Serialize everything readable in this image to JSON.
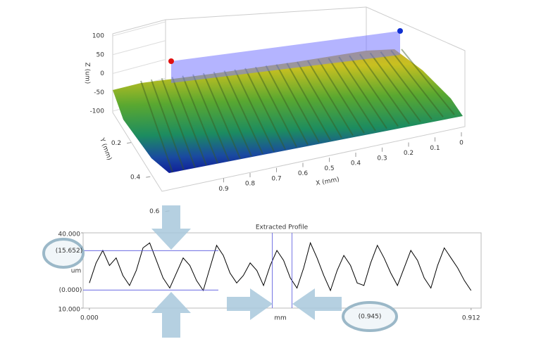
{
  "chart_data": [
    {
      "type": "surface3d",
      "zlabel": "Z (um)",
      "ylabel": "Y (mm)",
      "xlabel": "X (mm)",
      "zlim": [
        -100,
        100
      ],
      "zticks": [
        100,
        50,
        0,
        -50,
        -100
      ],
      "ylim": [
        0,
        0.7
      ],
      "yticks": [
        0.2,
        0.4,
        0.6
      ],
      "xlim": [
        0,
        1
      ],
      "xticks": [
        0.9,
        0.8,
        0.7,
        0.6,
        0.5,
        0.4,
        0.3,
        0.2,
        0.1,
        0
      ]
    },
    {
      "type": "line",
      "title": "Extracted Profile",
      "ylabel": "um",
      "xlabel": "mm",
      "color": "#000000",
      "ylim": [
        10,
        40
      ],
      "yticks": [
        {
          "value": 40,
          "label": "40.000"
        },
        {
          "value": 10,
          "label": "10.000"
        }
      ],
      "xlim": [
        -0.015,
        0.936
      ],
      "xticks": [
        {
          "value": 0,
          "label": "0.000"
        },
        {
          "value": 0.912,
          "label": "0.912"
        }
      ],
      "hcursors": [
        {
          "value": 32.9,
          "label": "(15.652)"
        },
        {
          "value": 17.2,
          "label": "(0.000)"
        }
      ],
      "vcursors": [
        0.437,
        0.484
      ],
      "vcursor_label": "(0.945)",
      "x": [
        0,
        0.016,
        0.032,
        0.048,
        0.064,
        0.08,
        0.096,
        0.112,
        0.128,
        0.144,
        0.16,
        0.176,
        0.192,
        0.208,
        0.224,
        0.24,
        0.256,
        0.272,
        0.288,
        0.304,
        0.32,
        0.336,
        0.352,
        0.368,
        0.384,
        0.4,
        0.416,
        0.432,
        0.448,
        0.464,
        0.48,
        0.496,
        0.512,
        0.528,
        0.544,
        0.56,
        0.576,
        0.592,
        0.608,
        0.624,
        0.64,
        0.656,
        0.672,
        0.688,
        0.704,
        0.72,
        0.736,
        0.752,
        0.768,
        0.784,
        0.8,
        0.816,
        0.832,
        0.848,
        0.864,
        0.88,
        0.896,
        0.912
      ],
      "values": [
        20,
        28,
        33,
        27,
        30,
        23,
        19,
        25,
        34,
        36,
        29,
        22,
        18,
        24,
        30,
        27,
        21,
        17,
        26,
        35,
        31,
        24,
        20,
        23,
        28,
        25,
        19,
        27,
        33,
        29,
        22,
        18,
        26,
        36,
        30,
        23,
        17,
        25,
        31,
        27,
        20,
        19,
        28,
        35,
        30,
        24,
        19,
        26,
        33,
        29,
        22,
        18,
        27,
        34,
        30,
        26,
        21,
        17
      ]
    }
  ]
}
